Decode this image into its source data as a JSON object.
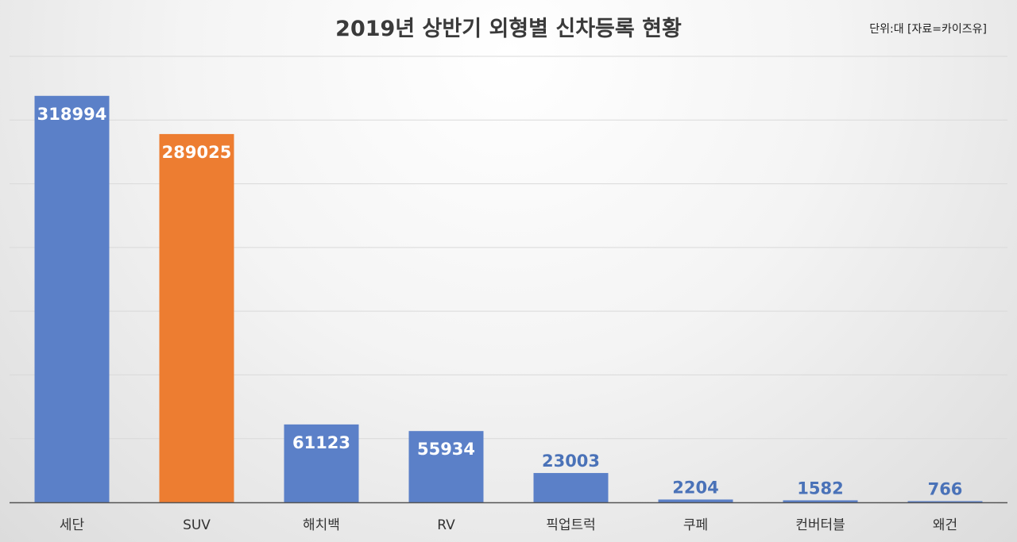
{
  "chart_data": {
    "type": "bar",
    "title": "2019년 상반기 외형별 신차등록 현황",
    "unit_note": "단위:대 [자료=카이즈유]",
    "categories": [
      "세단",
      "SUV",
      "해치백",
      "RV",
      "픽업트럭",
      "쿠페",
      "컨버터블",
      "왜건"
    ],
    "values": [
      318994,
      289025,
      61123,
      55934,
      23003,
      2204,
      1582,
      766
    ],
    "ylim": [
      0,
      350000
    ],
    "grid": true,
    "show_y_tick_labels": false,
    "colors": {
      "default_bar": "#5b80c8",
      "highlight_bar": "#ed7d31",
      "gridline": "#d9d9d9",
      "axis": "#555555",
      "inside_label": "#ffffff",
      "outside_label": "#4a72b8"
    },
    "highlight_index": 1
  }
}
